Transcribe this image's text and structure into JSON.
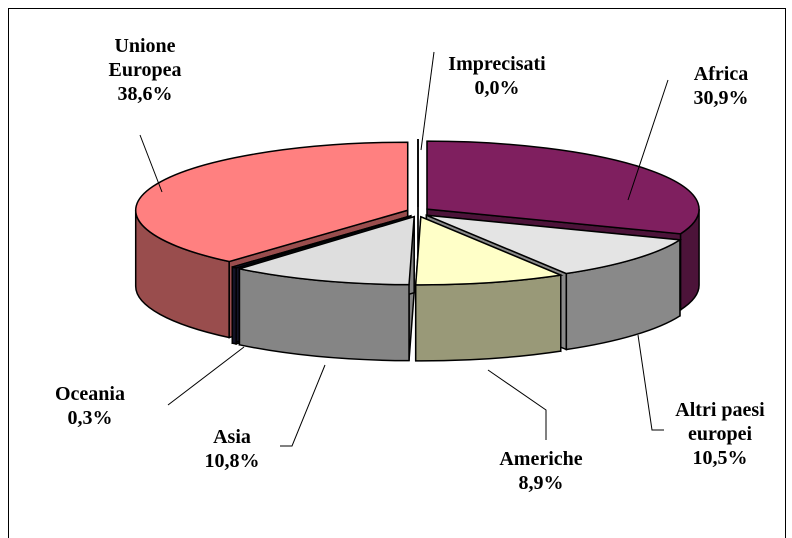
{
  "chart_data": {
    "type": "pie",
    "categories": [
      "Imprecisati",
      "Africa",
      "Altri paesi europei",
      "Americhe",
      "Asia",
      "Oceania",
      "Unione Europea"
    ],
    "values": [
      0.0,
      30.9,
      10.5,
      8.9,
      10.8,
      0.3,
      38.6
    ],
    "value_labels": [
      "0,0%",
      "30,9%",
      "10,5%",
      "8,9%",
      "10,8%",
      "0,3%",
      "38,6%"
    ],
    "colors": [
      "#ffffff",
      "#7f1f5f",
      "#e4e4e4",
      "#ffffc8",
      "#dedede",
      "#202040",
      "#ff8080"
    ]
  }
}
